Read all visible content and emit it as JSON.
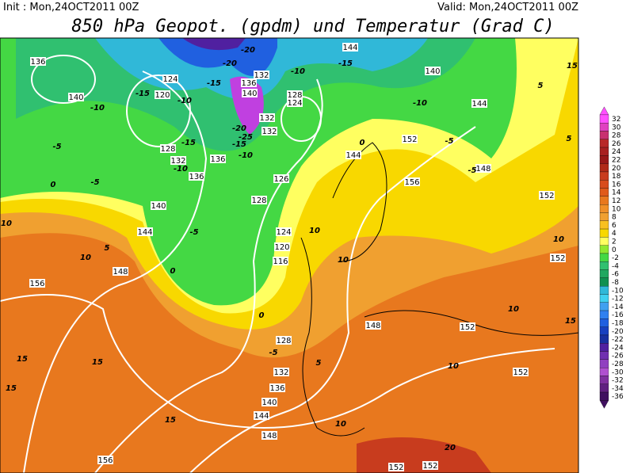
{
  "header": {
    "init": "Init : Mon,24OCT2011 00Z",
    "valid": "Valid: Mon,24OCT2011 00Z",
    "title": "850 hPa Geopot. (gpdm) und Temperatur (Grad C)"
  },
  "colorbar": {
    "labels": [
      32,
      30,
      28,
      26,
      24,
      22,
      20,
      18,
      16,
      14,
      12,
      10,
      8,
      6,
      4,
      2,
      0,
      -2,
      -4,
      -6,
      -8,
      -10,
      -12,
      -14,
      -16,
      -18,
      -20,
      -22,
      -24,
      -26,
      -28,
      -30,
      -32,
      -34,
      -36
    ]
  },
  "map": {
    "geopotential_labels": [
      136,
      140,
      124,
      120,
      128,
      132,
      136,
      136,
      140,
      144,
      148,
      156,
      128,
      124,
      132,
      136,
      140,
      132,
      132,
      126,
      128,
      124,
      120,
      116,
      128,
      132,
      136,
      140,
      144,
      148,
      156,
      152,
      152,
      148,
      152,
      152,
      152,
      152,
      156,
      148,
      152,
      144,
      140,
      144,
      144
    ],
    "temperature_labels": [
      -10,
      -15,
      -10,
      -15,
      -20,
      -20,
      -15,
      -25,
      -20,
      -10,
      -15,
      -10,
      -5,
      -5,
      0,
      -5,
      0,
      0,
      -5,
      5,
      10,
      10,
      15,
      15,
      15,
      15,
      10,
      10,
      10,
      20,
      15,
      10,
      5,
      5,
      -5,
      -10,
      -15,
      -10,
      5,
      10,
      10,
      0,
      -5,
      15
    ]
  }
}
